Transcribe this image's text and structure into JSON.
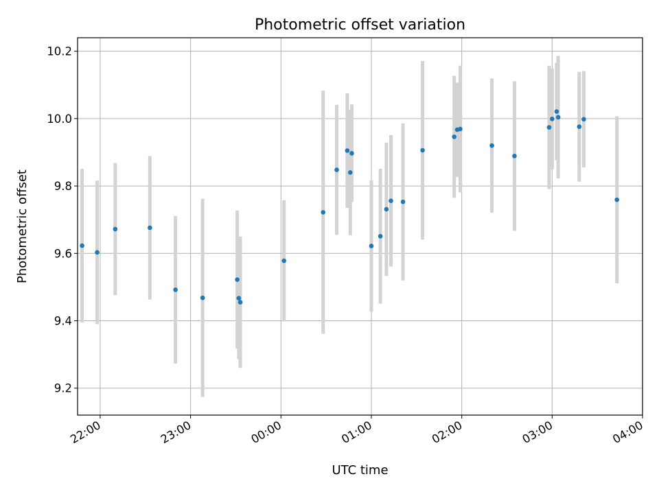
{
  "chart_data": {
    "type": "scatter",
    "title": "Photometric offset variation",
    "xlabel": "UTC time",
    "ylabel": "Photometric offset",
    "x_tick_labels": [
      "22:00",
      "23:00",
      "00:00",
      "01:00",
      "02:00",
      "03:00",
      "04:00"
    ],
    "y_tick_labels": [
      "9.2",
      "9.4",
      "9.6",
      "9.8",
      "10.0",
      "10.2"
    ],
    "xlim": [
      "21:45",
      "04:00"
    ],
    "ylim": [
      9.12,
      10.24
    ],
    "grid": true,
    "marker_color": "#1f77b4",
    "errorbar_color": "#d3d3d3",
    "points": [
      {
        "x": "21:48",
        "y": 9.623,
        "err": 0.228
      },
      {
        "x": "21:58",
        "y": 9.603,
        "err": 0.213
      },
      {
        "x": "22:10",
        "y": 9.672,
        "err": 0.196
      },
      {
        "x": "22:33",
        "y": 9.676,
        "err": 0.213
      },
      {
        "x": "22:50",
        "y": 9.492,
        "err": 0.219
      },
      {
        "x": "23:08",
        "y": 9.468,
        "err": 0.294
      },
      {
        "x": "23:31",
        "y": 9.522,
        "err": 0.205
      },
      {
        "x": "23:32",
        "y": 9.467,
        "err": 0.181
      },
      {
        "x": "23:33",
        "y": 9.455,
        "err": 0.195
      },
      {
        "x": "00:02",
        "y": 9.578,
        "err": 0.18
      },
      {
        "x": "00:28",
        "y": 9.722,
        "err": 0.361
      },
      {
        "x": "00:37",
        "y": 9.848,
        "err": 0.193
      },
      {
        "x": "00:44",
        "y": 9.905,
        "err": 0.17
      },
      {
        "x": "00:46",
        "y": 9.84,
        "err": 0.186
      },
      {
        "x": "00:47",
        "y": 9.897,
        "err": 0.145
      },
      {
        "x": "01:00",
        "y": 9.622,
        "err": 0.195
      },
      {
        "x": "01:06",
        "y": 9.651,
        "err": 0.2
      },
      {
        "x": "01:10",
        "y": 9.731,
        "err": 0.198
      },
      {
        "x": "01:13",
        "y": 9.756,
        "err": 0.195
      },
      {
        "x": "01:21",
        "y": 9.753,
        "err": 0.233
      },
      {
        "x": "01:34",
        "y": 9.906,
        "err": 0.265
      },
      {
        "x": "01:55",
        "y": 9.946,
        "err": 0.181
      },
      {
        "x": "01:57",
        "y": 9.967,
        "err": 0.14
      },
      {
        "x": "01:59",
        "y": 9.969,
        "err": 0.188
      },
      {
        "x": "02:20",
        "y": 9.92,
        "err": 0.199
      },
      {
        "x": "02:35",
        "y": 9.889,
        "err": 0.222
      },
      {
        "x": "02:58",
        "y": 9.974,
        "err": 0.183
      },
      {
        "x": "03:00",
        "y": 9.999,
        "err": 0.15
      },
      {
        "x": "03:03",
        "y": 10.021,
        "err": 0.145
      },
      {
        "x": "03:04",
        "y": 10.004,
        "err": 0.182
      },
      {
        "x": "03:18",
        "y": 9.976,
        "err": 0.163
      },
      {
        "x": "03:21",
        "y": 9.998,
        "err": 0.143
      },
      {
        "x": "03:43",
        "y": 9.759,
        "err": 0.248
      }
    ]
  }
}
